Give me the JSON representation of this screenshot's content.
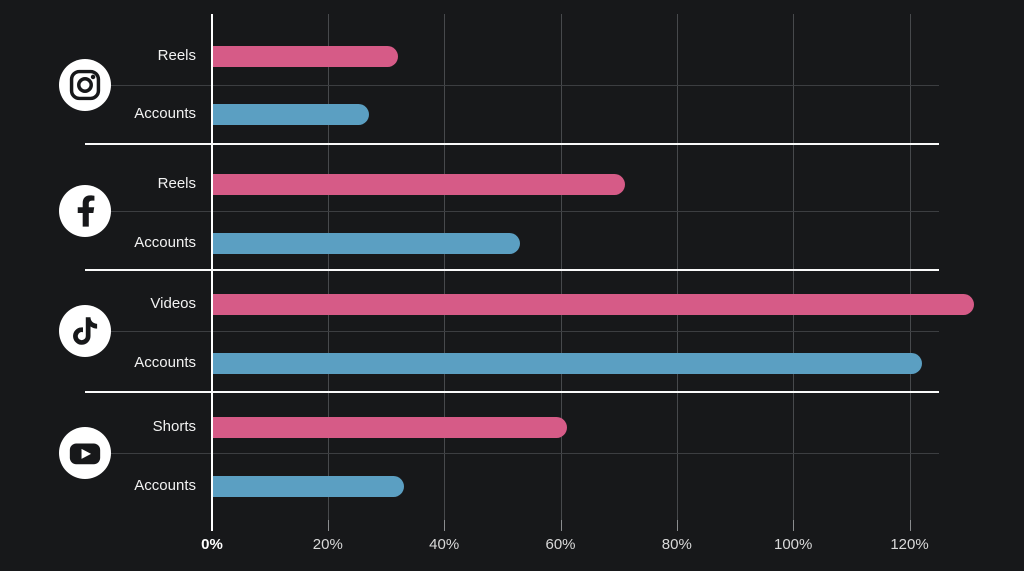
{
  "background": "#17181a",
  "colors": {
    "bar_format": "#d65b87",
    "bar_accounts": "#5b9fc2",
    "axis_line": "#ffffff",
    "gridline": "#47494c",
    "row_gridline": "#3c3e41",
    "separator": "#fafafa",
    "tick_label": "#d9d9d9",
    "tick_label_zero": "#ffffff",
    "row_label": "#f2f2f2",
    "icon_bg": "#ffffff",
    "icon_glyph": "#17181a"
  },
  "chart_data": {
    "type": "bar",
    "orientation": "horizontal",
    "title": "",
    "xlabel": "",
    "ylabel": "",
    "unit": "percent",
    "grid": true,
    "legend_position": "none",
    "x_axis": {
      "min": 0,
      "max": 120,
      "tick_step": 20,
      "tick_labels": [
        "0%",
        "20%",
        "40%",
        "60%",
        "80%",
        "100%",
        "120%"
      ]
    },
    "groups": [
      {
        "platform": "Instagram",
        "icon": "instagram-icon",
        "rows": [
          {
            "label": "Reels",
            "value": 32,
            "series": "format"
          },
          {
            "label": "Accounts",
            "value": 27,
            "series": "accounts"
          }
        ]
      },
      {
        "platform": "Facebook",
        "icon": "facebook-icon",
        "rows": [
          {
            "label": "Reels",
            "value": 71,
            "series": "format"
          },
          {
            "label": "Accounts",
            "value": 53,
            "series": "accounts"
          }
        ]
      },
      {
        "platform": "TikTok",
        "icon": "tiktok-icon",
        "rows": [
          {
            "label": "Videos",
            "value": 131,
            "series": "format"
          },
          {
            "label": "Accounts",
            "value": 122,
            "series": "accounts"
          }
        ]
      },
      {
        "platform": "YouTube",
        "icon": "youtube-icon",
        "rows": [
          {
            "label": "Shorts",
            "value": 61,
            "series": "format"
          },
          {
            "label": "Accounts",
            "value": 33,
            "series": "accounts"
          }
        ]
      }
    ]
  }
}
